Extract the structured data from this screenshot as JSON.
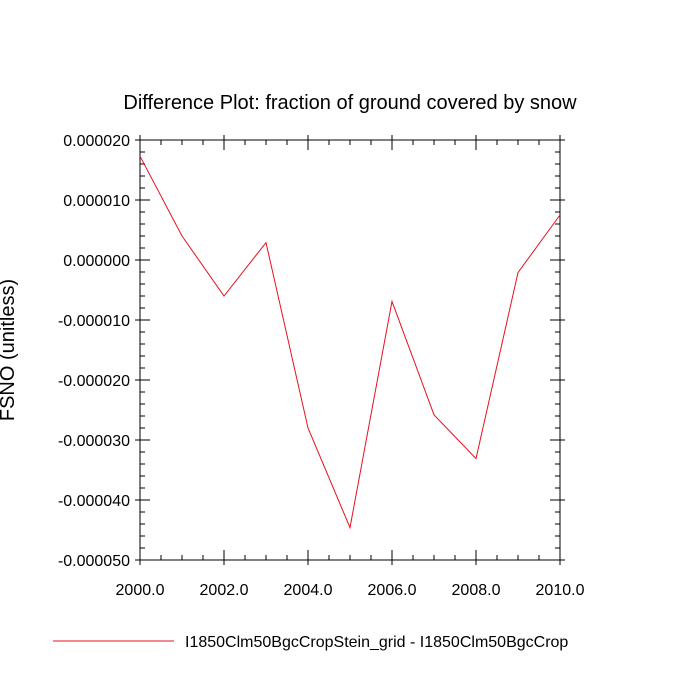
{
  "chart_data": {
    "type": "line",
    "title": "Difference Plot: fraction of ground covered by snow",
    "xlabel": "",
    "ylabel": "FSNO  (unitless)",
    "xlim": [
      2000.0,
      2010.0
    ],
    "ylim": [
      -5e-05,
      2e-05
    ],
    "x_ticks": [
      2000.0,
      2002.0,
      2004.0,
      2006.0,
      2008.0,
      2010.0
    ],
    "x_tick_labels": [
      "2000.0",
      "2002.0",
      "2004.0",
      "2006.0",
      "2008.0",
      "2010.0"
    ],
    "y_ticks": [
      2e-05,
      1e-05,
      0.0,
      -1e-05,
      -2e-05,
      -3e-05,
      -4e-05,
      -5e-05
    ],
    "y_tick_labels": [
      "0.000020",
      "0.000010",
      "0.000000",
      "-0.000010",
      "-0.000020",
      "-0.000030",
      "-0.000040",
      "-0.000050"
    ],
    "grid": false,
    "legend_position": "bottom",
    "series": [
      {
        "name": "I1850Clm50BgcCropStein_grid - I1850Clm50BgcCrop",
        "color": "#e8101f",
        "x": [
          2000,
          2001,
          2002,
          2003,
          2004,
          2005,
          2006,
          2007,
          2008,
          2009,
          2010
        ],
        "y": [
          1.73e-05,
          4e-06,
          -6e-06,
          2.9e-06,
          -2.8e-05,
          -4.46e-05,
          -6.9e-06,
          -2.58e-05,
          -3.31e-05,
          -2.1e-06,
          7.5e-06
        ]
      }
    ]
  }
}
